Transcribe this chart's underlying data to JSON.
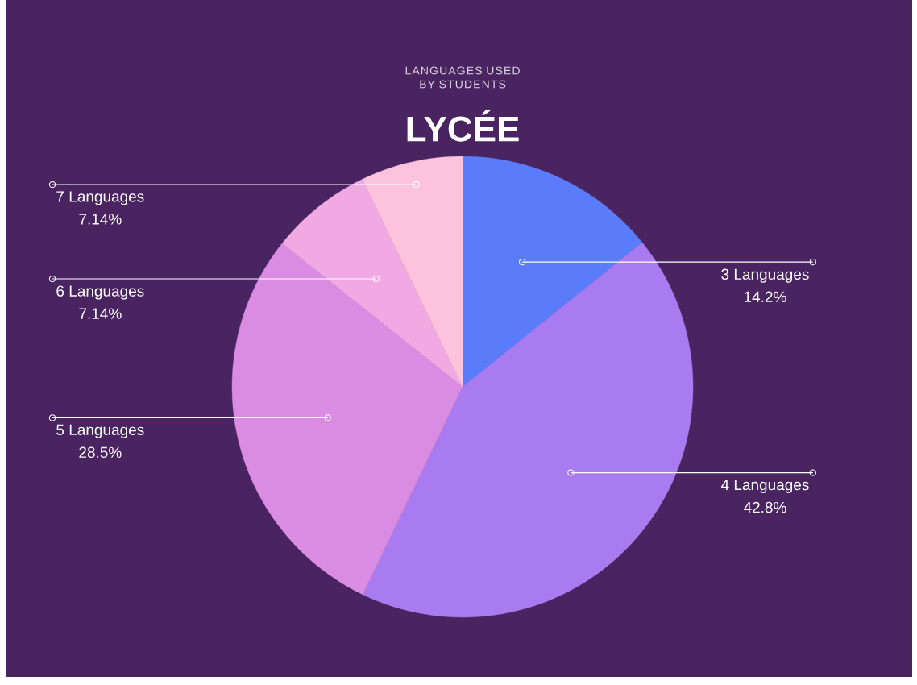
{
  "chart_data": {
    "type": "pie",
    "title": "LYCÉE",
    "subtitle": "LANGUAGES USED BY STUDENTS",
    "categories": [
      "3 Languages",
      "4 Languages",
      "5 Languages",
      "6 Languages",
      "7 Languages"
    ],
    "values": [
      14.2,
      42.8,
      28.5,
      7.14,
      7.14
    ],
    "colors": [
      "#5b7cfa",
      "#a97bf1",
      "#d98ce1",
      "#f0a9e2",
      "#fdc2dc"
    ],
    "value_labels": [
      "14.2%",
      "42.8%",
      "28.5%",
      "7.14%",
      "7.14%"
    ]
  }
}
